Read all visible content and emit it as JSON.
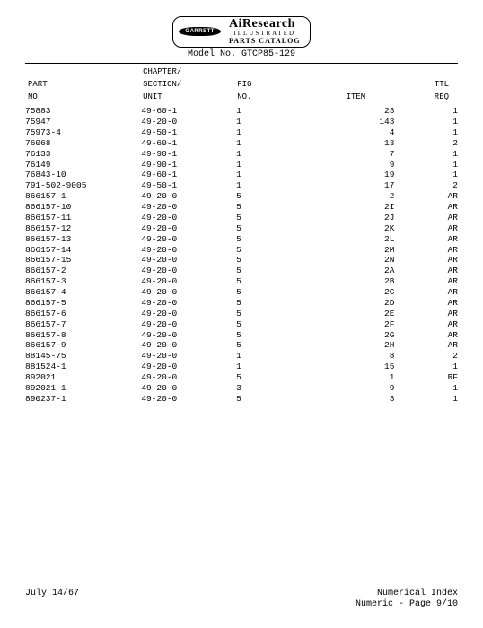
{
  "branding": {
    "oval": "GARRETT",
    "line1": "AiResearch",
    "line2": "ILLUSTRATED",
    "line3": "PARTS CATALOG"
  },
  "model_line": "Model No. GTCP85-129",
  "headers": {
    "part1": "PART",
    "part2": "NO.",
    "csu1": "CHAPTER/",
    "csu2": "SECTION/",
    "csu3": "UNIT",
    "fig1": "FIG",
    "fig2": "NO.",
    "item": "ITEM",
    "ttl1": "TTL",
    "ttl2": "REQ"
  },
  "rows": [
    {
      "part": "75883",
      "csu": "49-60-1",
      "fig": "1",
      "item": "23",
      "ttl": "1"
    },
    {
      "part": "75947",
      "csu": "49-20-0",
      "fig": "1",
      "item": "143",
      "ttl": "1"
    },
    {
      "part": "75973-4",
      "csu": "49-50-1",
      "fig": "1",
      "item": "4",
      "ttl": "1"
    },
    {
      "part": "76068",
      "csu": "49-60-1",
      "fig": "1",
      "item": "13",
      "ttl": "2"
    },
    {
      "part": "76133",
      "csu": "49-90-1",
      "fig": "1",
      "item": "7",
      "ttl": "1"
    },
    {
      "part": "76149",
      "csu": "49-90-1",
      "fig": "1",
      "item": "9",
      "ttl": "1"
    },
    {
      "part": "76843-10",
      "csu": "49-60-1",
      "fig": "1",
      "item": "19",
      "ttl": "1"
    },
    {
      "part": "791-502-9005",
      "csu": "49-50-1",
      "fig": "1",
      "item": "17",
      "ttl": "2"
    },
    {
      "part": "866157-1",
      "csu": "49-20-0",
      "fig": "5",
      "item": "2",
      "ttl": "AR"
    },
    {
      "part": "866157-10",
      "csu": "49-20-0",
      "fig": "5",
      "item": "2I",
      "ttl": "AR"
    },
    {
      "part": "866157-11",
      "csu": "49-20-0",
      "fig": "5",
      "item": "2J",
      "ttl": "AR"
    },
    {
      "part": "866157-12",
      "csu": "49-20-0",
      "fig": "5",
      "item": "2K",
      "ttl": "AR"
    },
    {
      "part": "866157-13",
      "csu": "49-20-0",
      "fig": "5",
      "item": "2L",
      "ttl": "AR"
    },
    {
      "part": "866157-14",
      "csu": "49-20-0",
      "fig": "5",
      "item": "2M",
      "ttl": "AR"
    },
    {
      "part": "866157-15",
      "csu": "49-20-0",
      "fig": "5",
      "item": "2N",
      "ttl": "AR"
    },
    {
      "part": "866157-2",
      "csu": "49-20-0",
      "fig": "5",
      "item": "2A",
      "ttl": "AR"
    },
    {
      "part": "866157-3",
      "csu": "49-20-0",
      "fig": "5",
      "item": "2B",
      "ttl": "AR"
    },
    {
      "part": "866157-4",
      "csu": "49-20-0",
      "fig": "5",
      "item": "2C",
      "ttl": "AR"
    },
    {
      "part": "866157-5",
      "csu": "49-20-0",
      "fig": "5",
      "item": "2D",
      "ttl": "AR"
    },
    {
      "part": "866157-6",
      "csu": "49-20-0",
      "fig": "5",
      "item": "2E",
      "ttl": "AR"
    },
    {
      "part": "866157-7",
      "csu": "49-20-0",
      "fig": "5",
      "item": "2F",
      "ttl": "AR"
    },
    {
      "part": "866157-8",
      "csu": "49-20-0",
      "fig": "5",
      "item": "2G",
      "ttl": "AR"
    },
    {
      "part": "866157-9",
      "csu": "49-20-0",
      "fig": "5",
      "item": "2H",
      "ttl": "AR"
    },
    {
      "part": "88145-75",
      "csu": "49-20-0",
      "fig": "1",
      "item": "8",
      "ttl": "2"
    },
    {
      "part": "881524-1",
      "csu": "49-20-0",
      "fig": "1",
      "item": "15",
      "ttl": "1"
    },
    {
      "part": "892021",
      "csu": "49-20-0",
      "fig": "5",
      "item": "1",
      "ttl": "RF"
    },
    {
      "part": "892021-1",
      "csu": "49-20-0",
      "fig": "3",
      "item": "9",
      "ttl": "1"
    },
    {
      "part": "890237-1",
      "csu": "49-20-0",
      "fig": "5",
      "item": "3",
      "ttl": "1"
    }
  ],
  "footer": {
    "date": "July 14/67",
    "right1": "Numerical Index",
    "right2": "Numeric - Page 9/10"
  }
}
